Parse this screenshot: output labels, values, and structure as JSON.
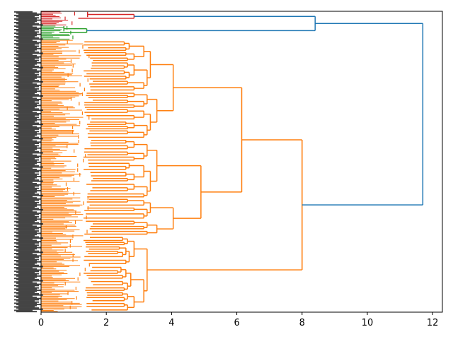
{
  "chart_data": {
    "type": "dendrogram",
    "orientation": "horizontal",
    "title": "",
    "xlabel": "",
    "ylabel": "",
    "xlim": [
      0,
      12.3
    ],
    "x_ticks": [
      0,
      2,
      4,
      6,
      8,
      10,
      12
    ],
    "x_tick_labels": [
      "0",
      "2",
      "4",
      "6",
      "8",
      "10",
      "12"
    ],
    "grid": false,
    "colors": {
      "red": "#d62728",
      "green": "#2ca02c",
      "orange": "#ff7f0e",
      "blue": "#1f77b4"
    },
    "clusters": [
      {
        "color": "red",
        "leaf_count": 12,
        "merge_height": 2.85
      },
      {
        "color": "green",
        "leaf_count": 12,
        "merge_height": 1.4
      },
      {
        "color": "orange",
        "leaf_count": 230,
        "merge_height": 8.0
      }
    ],
    "top_merges": [
      {
        "children": [
          "red",
          "green"
        ],
        "height": 8.4,
        "color": "blue"
      },
      {
        "children": [
          "red+green",
          "orange"
        ],
        "height": 11.7,
        "color": "blue"
      }
    ],
    "orange_internal_merges": [
      {
        "height": 6.15
      },
      {
        "height": 4.9
      },
      {
        "height": 4.05
      },
      {
        "height": 3.55
      },
      {
        "height": 3.25
      },
      {
        "height": 3.2
      },
      {
        "height": 3.15
      },
      {
        "height": 2.85
      },
      {
        "height": 2.65
      },
      {
        "height": 2.6
      },
      {
        "height": 2.55
      },
      {
        "height": 2.5
      },
      {
        "height": 2.4
      },
      {
        "height": 2.35
      },
      {
        "height": 2.3
      },
      {
        "height": 2.2
      },
      {
        "height": 2.05
      },
      {
        "height": 1.95
      },
      {
        "height": 1.9
      },
      {
        "height": 1.85
      },
      {
        "height": 1.75
      },
      {
        "height": 1.65
      },
      {
        "height": 1.55
      }
    ]
  }
}
